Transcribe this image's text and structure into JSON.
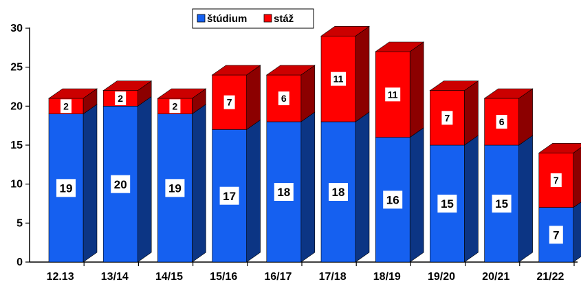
{
  "chart_data": {
    "type": "bar",
    "stacked": true,
    "three_d": true,
    "categories": [
      "12.13",
      "13/14",
      "14/15",
      "15/16",
      "16/17",
      "17/18",
      "18/19",
      "19/20",
      "20/21",
      "21/22"
    ],
    "series": [
      {
        "name": "štúdium",
        "color": "#1560f0",
        "values": [
          19,
          20,
          19,
          17,
          18,
          18,
          16,
          15,
          15,
          7
        ]
      },
      {
        "name": "stáž",
        "color": "#ff0000",
        "values": [
          2,
          2,
          2,
          7,
          6,
          11,
          11,
          7,
          6,
          7
        ]
      }
    ],
    "yticks": [
      "0",
      "5",
      "10",
      "15",
      "20",
      "25",
      "30"
    ],
    "ylim": [
      0,
      30
    ],
    "grid": false,
    "legend_position": "top-center",
    "data_labels": true
  }
}
